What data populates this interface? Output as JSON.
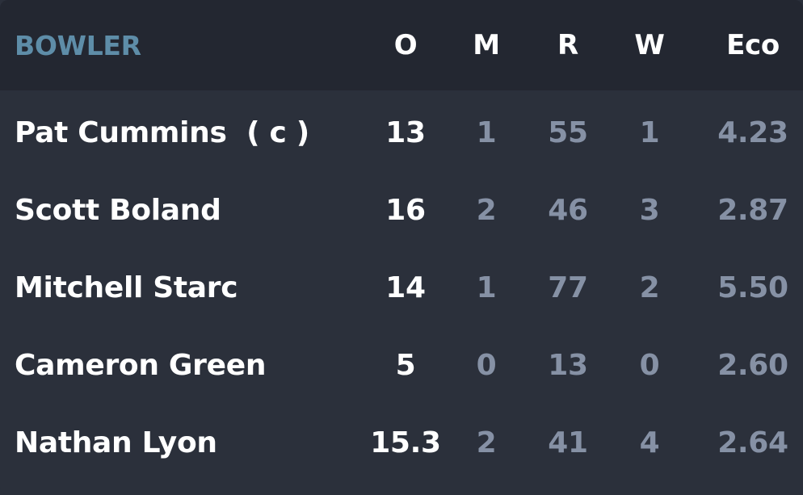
{
  "table": {
    "headers": {
      "bowler": "BOWLER",
      "overs": "O",
      "maidens": "M",
      "runs": "R",
      "wickets": "W",
      "economy": "Eco"
    },
    "rows": [
      {
        "name": "Pat Cummins  ( c )",
        "overs": "13",
        "maidens": "1",
        "runs": "55",
        "wickets": "1",
        "economy": "4.23"
      },
      {
        "name": "Scott Boland",
        "overs": "16",
        "maidens": "2",
        "runs": "46",
        "wickets": "3",
        "economy": "2.87"
      },
      {
        "name": "Mitchell Starc",
        "overs": "14",
        "maidens": "1",
        "runs": "77",
        "wickets": "2",
        "economy": "5.50"
      },
      {
        "name": "Cameron Green",
        "overs": "5",
        "maidens": "0",
        "runs": "13",
        "wickets": "0",
        "economy": "2.60"
      },
      {
        "name": "Nathan Lyon",
        "overs": "15.3",
        "maidens": "2",
        "runs": "41",
        "wickets": "4",
        "economy": "2.64"
      }
    ]
  },
  "colors": {
    "background": "#2b303b",
    "header_background": "#232731",
    "header_accent": "#5e8da8",
    "primary_text": "#ffffff",
    "secondary_text": "#8691a5"
  }
}
